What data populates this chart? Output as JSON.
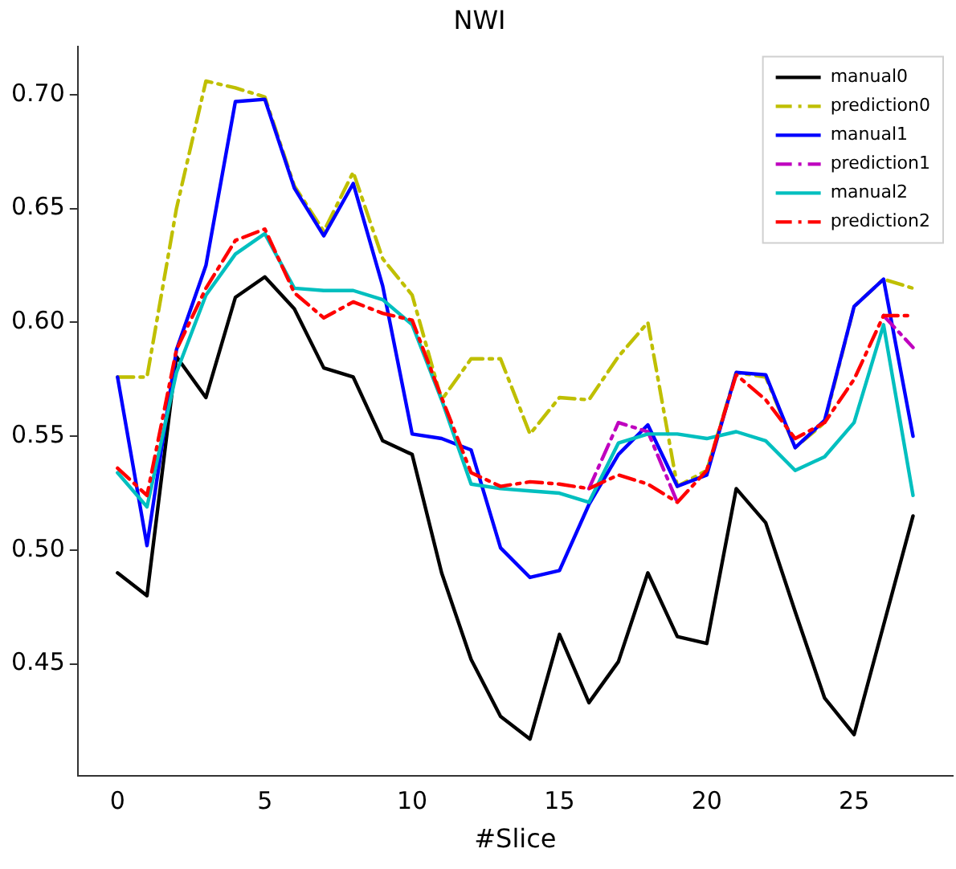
{
  "chart_data": {
    "type": "line",
    "title": "NWI",
    "xlabel": "#Slice",
    "x": [
      0,
      1,
      2,
      3,
      4,
      5,
      6,
      7,
      8,
      9,
      10,
      11,
      12,
      13,
      14,
      15,
      16,
      17,
      18,
      19,
      20,
      21,
      22,
      23,
      24,
      25,
      26,
      27
    ],
    "series": [
      {
        "name": "manual0",
        "color": "#000000",
        "line_style": "solid",
        "values": [
          0.49,
          0.48,
          0.585,
          0.567,
          0.611,
          0.62,
          0.606,
          0.58,
          0.576,
          0.548,
          0.542,
          0.49,
          0.452,
          0.427,
          0.417,
          0.463,
          0.433,
          0.451,
          0.49,
          0.462,
          0.459,
          0.527,
          0.512,
          0.473,
          0.435,
          0.419,
          0.467,
          0.515
        ]
      },
      {
        "name": "prediction0",
        "color": "#bfbf00",
        "line_style": "dashed",
        "values": [
          0.576,
          0.576,
          0.65,
          0.706,
          0.703,
          0.699,
          0.66,
          0.64,
          0.666,
          0.628,
          0.612,
          0.566,
          0.584,
          0.584,
          0.551,
          0.567,
          0.566,
          0.585,
          0.6,
          0.528,
          0.535,
          0.578,
          0.576,
          0.545,
          0.556,
          0.607,
          0.619,
          0.615
        ]
      },
      {
        "name": "manual1",
        "color": "#0000ff",
        "line_style": "solid",
        "values": [
          0.576,
          0.502,
          0.588,
          0.625,
          0.697,
          0.698,
          0.659,
          0.638,
          0.661,
          0.616,
          0.551,
          0.549,
          0.544,
          0.501,
          0.488,
          0.491,
          0.52,
          0.542,
          0.555,
          0.528,
          0.533,
          0.578,
          0.577,
          0.545,
          0.557,
          0.607,
          0.619,
          0.55
        ]
      },
      {
        "name": "prediction1",
        "color": "#bf00bf",
        "line_style": "dashed",
        "values": [
          null,
          null,
          null,
          null,
          null,
          null,
          null,
          null,
          null,
          null,
          null,
          null,
          null,
          null,
          null,
          null,
          0.527,
          0.556,
          0.552,
          0.521,
          null,
          null,
          null,
          null,
          null,
          null,
          0.603,
          0.589
        ]
      },
      {
        "name": "manual2",
        "color": "#00bfbf",
        "line_style": "solid",
        "values": [
          0.534,
          0.519,
          0.578,
          0.612,
          0.63,
          0.639,
          0.615,
          0.614,
          0.614,
          0.61,
          0.599,
          0.566,
          0.529,
          0.527,
          0.526,
          0.525,
          0.521,
          0.547,
          0.551,
          0.551,
          0.549,
          0.552,
          0.548,
          0.535,
          0.541,
          0.556,
          0.599,
          0.524
        ]
      },
      {
        "name": "prediction2",
        "color": "#ff0000",
        "line_style": "dashed",
        "values": [
          0.536,
          0.524,
          0.588,
          0.615,
          0.636,
          0.641,
          0.613,
          0.602,
          0.609,
          0.604,
          0.601,
          0.567,
          0.534,
          0.528,
          0.53,
          0.529,
          0.527,
          0.533,
          0.529,
          0.521,
          0.535,
          0.577,
          0.566,
          0.549,
          0.556,
          0.575,
          0.603,
          0.603
        ]
      }
    ],
    "xlim": [
      -1.35,
      28.35
    ],
    "xticks": [
      0,
      5,
      10,
      15,
      20,
      25
    ],
    "ylim": [
      0.401,
      0.721
    ],
    "yticks": [
      0.45,
      {
        "value": 0.5,
        "label": "0.50"
      },
      0.55,
      {
        "value": 0.6,
        "label": "0.60"
      },
      0.65,
      {
        "value": 0.7,
        "label": "0.70"
      }
    ],
    "grid": false,
    "legend": "top right",
    "marker": "none"
  }
}
